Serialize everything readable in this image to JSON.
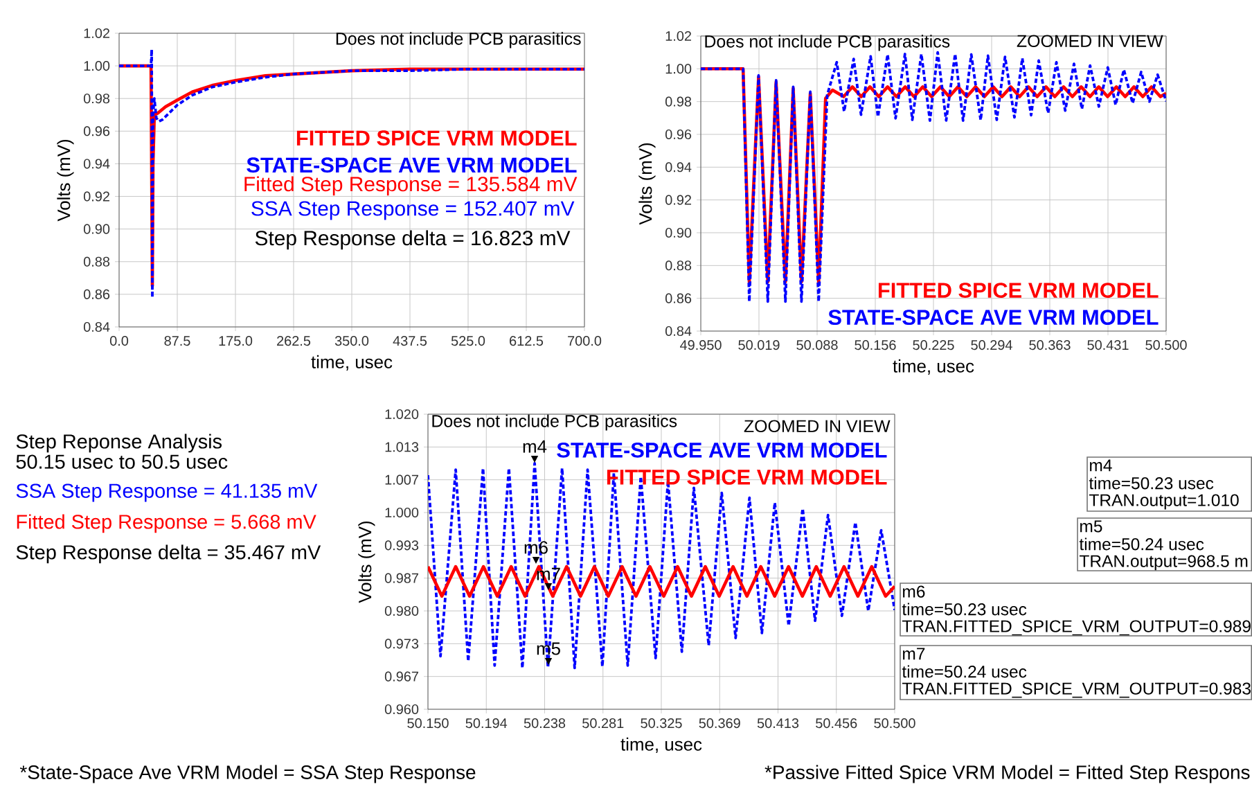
{
  "chart_data": [
    {
      "type": "line",
      "xlabel": "time, usec",
      "ylabel": "Volts (mV)",
      "xlim": [
        0,
        700
      ],
      "ylim": [
        0.84,
        1.02
      ],
      "xticks": [
        {
          "value": 0,
          "label": "0.0"
        },
        {
          "value": 87.5,
          "label": "87.5"
        },
        {
          "value": 175,
          "label": "175.0"
        },
        {
          "value": 262.5,
          "label": "262.5"
        },
        {
          "value": 350,
          "label": "350.0"
        },
        {
          "value": 437.5,
          "label": "437.5"
        },
        {
          "value": 525,
          "label": "525.0"
        },
        {
          "value": 612.5,
          "label": "612.5"
        },
        {
          "value": 700,
          "label": "700.0"
        }
      ],
      "yticks": [
        {
          "value": 0.84,
          "label": "0.84"
        },
        {
          "value": 0.86,
          "label": "0.86"
        },
        {
          "value": 0.88,
          "label": "0.88"
        },
        {
          "value": 0.9,
          "label": "0.90"
        },
        {
          "value": 0.92,
          "label": "0.92"
        },
        {
          "value": 0.94,
          "label": "0.94"
        },
        {
          "value": 0.96,
          "label": "0.96"
        },
        {
          "value": 0.98,
          "label": "0.98"
        },
        {
          "value": 1.0,
          "label": "1.00"
        },
        {
          "value": 1.02,
          "label": "1.02"
        }
      ],
      "grid": true,
      "legend": "right",
      "series": [
        {
          "name": "FITTED SPICE VRM MODEL",
          "color": "#ff0000",
          "line_style": "solid",
          "x": [
            0,
            48,
            50,
            51,
            53,
            58,
            70,
            87.5,
            110,
            140,
            175,
            220,
            262.5,
            350,
            437.5,
            525,
            700
          ],
          "values": [
            1.0,
            1.0,
            0.865,
            0.94,
            0.97,
            0.971,
            0.975,
            0.979,
            0.984,
            0.988,
            0.991,
            0.994,
            0.995,
            0.997,
            0.998,
            0.998,
            0.998
          ]
        },
        {
          "name": "STATE-SPACE AVE VRM MODEL",
          "color": "#0000ff",
          "line_style": "dashed",
          "x": [
            0,
            48,
            49,
            50,
            51,
            53,
            56,
            60,
            65,
            75,
            87.5,
            110,
            140,
            175,
            220,
            262.5,
            350,
            437.5,
            525,
            700
          ],
          "values": [
            1.0,
            1.0,
            1.01,
            0.858,
            0.97,
            0.98,
            0.968,
            0.966,
            0.967,
            0.971,
            0.976,
            0.982,
            0.987,
            0.99,
            0.993,
            0.995,
            0.997,
            0.997,
            0.998,
            0.998
          ]
        }
      ],
      "annotations": [
        "Does not include PCB parasitics",
        "Fitted Step Response = 135.584 mV",
        "SSA Step Response = 152.407 mV",
        "Step Response delta = 16.823 mV"
      ]
    },
    {
      "type": "line",
      "xlabel": "time, usec",
      "ylabel": "Volts (mV)",
      "xlim": [
        49.95,
        50.5
      ],
      "ylim": [
        0.84,
        1.02
      ],
      "xticks": [
        {
          "value": 49.95,
          "label": "49.950"
        },
        {
          "value": 50.01875,
          "label": "50.019"
        },
        {
          "value": 50.0875,
          "label": "50.088"
        },
        {
          "value": 50.15625,
          "label": "50.156"
        },
        {
          "value": 50.225,
          "label": "50.225"
        },
        {
          "value": 50.29375,
          "label": "50.294"
        },
        {
          "value": 50.3625,
          "label": "50.363"
        },
        {
          "value": 50.43125,
          "label": "50.431"
        },
        {
          "value": 50.5,
          "label": "50.500"
        }
      ],
      "yticks": [
        {
          "value": 0.84,
          "label": "0.84"
        },
        {
          "value": 0.86,
          "label": "0.86"
        },
        {
          "value": 0.88,
          "label": "0.88"
        },
        {
          "value": 0.9,
          "label": "0.90"
        },
        {
          "value": 0.92,
          "label": "0.92"
        },
        {
          "value": 0.94,
          "label": "0.94"
        },
        {
          "value": 0.96,
          "label": "0.96"
        },
        {
          "value": 0.98,
          "label": "0.98"
        },
        {
          "value": 1.0,
          "label": "1.00"
        },
        {
          "value": 1.02,
          "label": "1.02"
        }
      ],
      "grid": true,
      "legend": "bottom right",
      "series": [
        {
          "name": "FITTED SPICE VRM MODEL",
          "color": "#ff0000",
          "line_style": "solid",
          "x": [
            49.95,
            50.0,
            50.0073,
            50.0183,
            50.0292,
            50.039,
            50.05,
            50.0592,
            50.069,
            50.0794,
            50.0893,
            50.0975,
            50.1057,
            50.1188,
            50.1292,
            50.1396,
            50.15,
            50.1604,
            50.1708,
            50.1812,
            50.1916,
            50.202,
            50.2124,
            50.2228,
            50.2332,
            50.2436,
            50.254,
            50.2644,
            50.2748,
            50.2852,
            50.2956,
            50.306,
            50.3164,
            50.3268,
            50.3372,
            50.3476,
            50.358,
            50.3684,
            50.3788,
            50.3892,
            50.3996,
            50.41,
            50.4204,
            50.4308,
            50.4412,
            50.4516,
            50.462,
            50.4724,
            50.4828,
            50.4932,
            50.5
          ],
          "values": [
            1.0,
            1.0,
            0.87,
            0.995,
            0.87,
            0.992,
            0.87,
            0.988,
            0.87,
            0.985,
            0.87,
            0.982,
            0.987,
            0.983,
            0.989,
            0.983,
            0.989,
            0.983,
            0.989,
            0.983,
            0.989,
            0.983,
            0.989,
            0.983,
            0.989,
            0.983,
            0.989,
            0.983,
            0.989,
            0.983,
            0.989,
            0.983,
            0.989,
            0.983,
            0.989,
            0.983,
            0.989,
            0.983,
            0.989,
            0.983,
            0.989,
            0.983,
            0.989,
            0.983,
            0.989,
            0.983,
            0.989,
            0.983,
            0.989,
            0.983,
            0.985
          ]
        },
        {
          "name": "STATE-SPACE AVE VRM MODEL",
          "color": "#0000ff",
          "line_style": "dashed",
          "x": [
            49.95,
            50.0,
            50.0073,
            50.0183,
            50.0292,
            50.039,
            50.05,
            50.0592,
            50.069,
            50.0794,
            50.0893,
            50.0994,
            50.1107,
            50.1194,
            50.1307,
            50.1394,
            50.1507,
            50.1594,
            50.1708,
            50.1802,
            50.1913,
            50.2,
            50.2107,
            50.2208,
            50.23,
            50.24,
            50.2506,
            50.26,
            50.2697,
            50.2808,
            50.2894,
            50.2998,
            50.3096,
            50.3207,
            50.33,
            50.3404,
            50.3494,
            50.3605,
            50.3703,
            50.3807,
            50.3911,
            50.4004,
            50.4101,
            50.4205,
            50.431,
            50.4403,
            50.45,
            50.4604,
            50.4705,
            50.4802,
            50.4899,
            50.5
          ],
          "values": [
            1.0,
            1.0,
            0.858,
            0.996,
            0.858,
            0.993,
            0.858,
            0.989,
            0.858,
            0.986,
            0.858,
            0.984,
            1.004,
            0.974,
            1.006,
            0.972,
            1.0076,
            0.9708,
            1.0087,
            0.9698,
            1.009,
            0.9689,
            1.009,
            0.9684,
            1.01,
            0.9685,
            1.009,
            0.9684,
            1.0087,
            0.9687,
            1.008,
            0.9689,
            1.0073,
            0.9704,
            1.0064,
            0.9717,
            1.005,
            0.973,
            1.004,
            0.9745,
            1.003,
            0.9755,
            1.002,
            0.977,
            1.0008,
            0.978,
            0.9995,
            0.979,
            0.998,
            0.98,
            0.9964,
            0.9802
          ]
        }
      ],
      "annotations": [
        "Does not include PCB parasitics",
        "ZOOMED IN VIEW"
      ]
    },
    {
      "type": "line",
      "xlabel": "time, usec",
      "ylabel": "Volts (mV)",
      "xlim": [
        50.15,
        50.5
      ],
      "ylim": [
        0.96,
        1.02
      ],
      "xticks": [
        {
          "value": 50.15,
          "label": "50.150"
        },
        {
          "value": 50.19375,
          "label": "50.194"
        },
        {
          "value": 50.2375,
          "label": "50.238"
        },
        {
          "value": 50.28125,
          "label": "50.281"
        },
        {
          "value": 50.325,
          "label": "50.325"
        },
        {
          "value": 50.36875,
          "label": "50.369"
        },
        {
          "value": 50.4125,
          "label": "50.413"
        },
        {
          "value": 50.45625,
          "label": "50.456"
        },
        {
          "value": 50.5,
          "label": "50.500"
        }
      ],
      "yticks": [
        {
          "value": 0.96,
          "label": "0.960"
        },
        {
          "value": 0.966667,
          "label": "0.967"
        },
        {
          "value": 0.973333,
          "label": "0.973"
        },
        {
          "value": 0.98,
          "label": "0.980"
        },
        {
          "value": 0.986667,
          "label": "0.987"
        },
        {
          "value": 0.993333,
          "label": "0.993"
        },
        {
          "value": 1.0,
          "label": "1.000"
        },
        {
          "value": 1.006667,
          "label": "1.007"
        },
        {
          "value": 1.013333,
          "label": "1.013"
        },
        {
          "value": 1.02,
          "label": "1.020"
        }
      ],
      "grid": true,
      "legend": "top right",
      "series": [
        {
          "name": "STATE-SPACE AVE VRM MODEL",
          "color": "#0000ff",
          "line_style": "dashed",
          "x": [
            50.15,
            50.1594,
            50.1708,
            50.1802,
            50.1913,
            50.2,
            50.2107,
            50.2208,
            50.23,
            50.24,
            50.2506,
            50.26,
            50.2697,
            50.2808,
            50.2894,
            50.2998,
            50.3096,
            50.3207,
            50.33,
            50.3404,
            50.3494,
            50.3605,
            50.3703,
            50.3807,
            50.3911,
            50.4004,
            50.4101,
            50.4205,
            50.431,
            50.4403,
            50.45,
            50.4604,
            50.4705,
            50.4802,
            50.4899,
            50.5
          ],
          "values": [
            1.0076,
            0.9708,
            1.0087,
            0.9698,
            1.009,
            0.9689,
            1.009,
            0.9684,
            1.01,
            0.9685,
            1.009,
            0.9684,
            1.0087,
            0.9687,
            1.008,
            0.9689,
            1.0073,
            0.9704,
            1.0064,
            0.9717,
            1.005,
            0.973,
            1.004,
            0.9745,
            1.003,
            0.9755,
            1.002,
            0.977,
            1.0008,
            0.978,
            0.9995,
            0.979,
            0.998,
            0.98,
            0.9964,
            0.9802
          ]
        },
        {
          "name": "FITTED SPICE VRM MODEL",
          "color": "#ff0000",
          "line_style": "solid",
          "x": [
            50.15,
            50.1604,
            50.1708,
            50.1812,
            50.1916,
            50.202,
            50.2124,
            50.2228,
            50.2332,
            50.2436,
            50.254,
            50.2644,
            50.2748,
            50.2852,
            50.2956,
            50.306,
            50.3164,
            50.3268,
            50.3372,
            50.3476,
            50.358,
            50.3684,
            50.3788,
            50.3892,
            50.3996,
            50.41,
            50.4204,
            50.4308,
            50.4412,
            50.4516,
            50.462,
            50.4724,
            50.4828,
            50.4932,
            50.5
          ],
          "values": [
            0.989,
            0.983,
            0.989,
            0.983,
            0.989,
            0.983,
            0.989,
            0.983,
            0.989,
            0.983,
            0.989,
            0.983,
            0.989,
            0.983,
            0.989,
            0.983,
            0.989,
            0.983,
            0.989,
            0.983,
            0.989,
            0.983,
            0.989,
            0.983,
            0.989,
            0.983,
            0.989,
            0.983,
            0.989,
            0.983,
            0.989,
            0.983,
            0.989,
            0.983,
            0.985
          ]
        }
      ],
      "annotations": [
        "Does not include PCB parasitics",
        "ZOOMED IN VIEW",
        "m4",
        "m5",
        "m6",
        "m7",
        "Step Reponse Analysis",
        "50.15 usec to 50.5 usec",
        "SSA Step Response = 41.135 mV",
        "Fitted Step Response = 5.668 mV",
        "Step Response delta = 35.467 mV",
        "m4",
        "time=50.23 usec",
        "TRAN.output=1.010",
        "m5",
        "time=50.24 usec",
        "TRAN.output=968.5 m",
        "m6",
        "time=50.23 usec",
        "TRAN.FITTED_SPICE_VRM_OUTPUT=0.989",
        "m7",
        "time=50.24 usec",
        "TRAN.FITTED_SPICE_VRM_OUTPUT=0.983",
        "*State-Space Ave VRM Model = SSA Step Response",
        "*Passive Fitted Spice VRM Model = Fitted Step Respons"
      ]
    }
  ]
}
